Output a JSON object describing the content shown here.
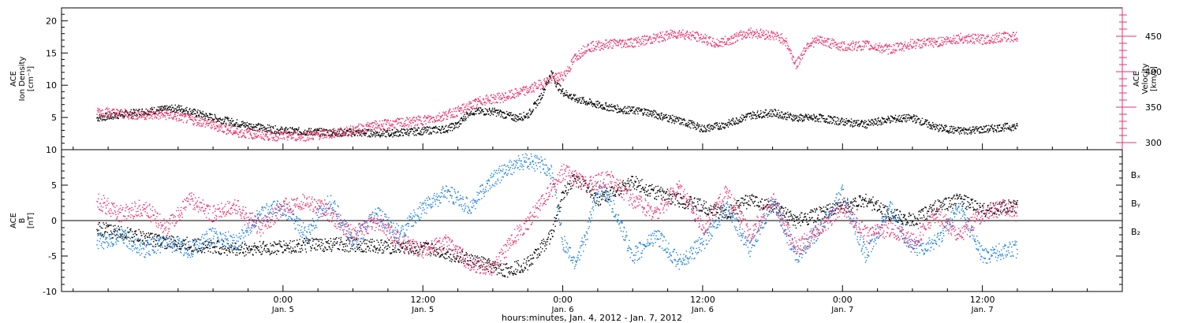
{
  "colors": {
    "black": "#000000",
    "pink": "#e8336b",
    "blue": "#1a7fe0"
  },
  "chart_data": [
    {
      "type": "scatter",
      "panel": "top",
      "ylabel_left_lines": [
        "ACE",
        "Ion Density",
        "[cm⁻³]"
      ],
      "ylabel_right_lines": [
        "ACE",
        "Velocity",
        "[km/s]"
      ],
      "ylim_left": [
        0,
        22
      ],
      "ylim_right": [
        290,
        490
      ],
      "yticks_left": [
        5,
        10,
        15,
        20
      ],
      "yticks_right": [
        300,
        350,
        400,
        450
      ],
      "series": [
        {
          "axis": "left",
          "color": "black",
          "x": [
            -16,
            -12,
            -9,
            -6,
            -3,
            0,
            3,
            6,
            9,
            12,
            14,
            15,
            16,
            18,
            20,
            21,
            22,
            23,
            23.5,
            24,
            25,
            27,
            29,
            31,
            33,
            35,
            36,
            38,
            40,
            42,
            44,
            46,
            48,
            50,
            52,
            54,
            56,
            58,
            60,
            62,
            63
          ],
          "y": [
            5,
            6,
            6.5,
            5,
            3.8,
            3,
            2.8,
            2.7,
            2.6,
            3,
            3.3,
            4,
            6,
            6,
            5,
            5.5,
            8,
            12,
            10,
            9,
            8,
            7,
            6.3,
            6,
            5,
            4,
            3.3,
            4,
            5.4,
            5.8,
            5,
            5,
            4.4,
            4,
            4.8,
            5,
            3.5,
            3,
            3.2,
            3.6,
            3.6
          ]
        },
        {
          "axis": "right",
          "color": "pink",
          "x": [
            -16,
            -13,
            -10,
            -7,
            -4,
            -1,
            2,
            5,
            8,
            11,
            13,
            15,
            17,
            19,
            21,
            23,
            24,
            24.5,
            25,
            26,
            28,
            30,
            32,
            33,
            34,
            36,
            37,
            38,
            40,
            42,
            43,
            44,
            45,
            46,
            48,
            50,
            52,
            54,
            56,
            58,
            60,
            62,
            63
          ],
          "y": [
            345,
            340,
            340,
            330,
            315,
            310,
            310,
            315,
            325,
            330,
            335,
            345,
            360,
            365,
            375,
            390,
            395,
            405,
            420,
            435,
            440,
            442,
            448,
            452,
            455,
            448,
            440,
            444,
            456,
            452,
            446,
            410,
            440,
            445,
            436,
            438,
            432,
            440,
            442,
            448,
            446,
            450,
            450
          ]
        }
      ]
    },
    {
      "type": "scatter",
      "panel": "bottom",
      "ylabel_lines": [
        "ACE",
        "B",
        "[nT]"
      ],
      "ylim": [
        -10,
        10
      ],
      "yticks": [
        -10,
        -5,
        0,
        5,
        10
      ],
      "legend": [
        "Bₓ",
        "Bᵧ",
        "B₂"
      ],
      "legend_colors": [
        "black",
        "blue",
        "pink"
      ],
      "series": [
        {
          "color": "black",
          "x": [
            -16,
            -13,
            -10,
            -7,
            -4,
            -1,
            2,
            5,
            8,
            11,
            13,
            15,
            17,
            19,
            20,
            21,
            22,
            23,
            24,
            25,
            26,
            27,
            28,
            30,
            32,
            34,
            36,
            38,
            40,
            42,
            44,
            46,
            48,
            50,
            52,
            54,
            56,
            58,
            60,
            62,
            63
          ],
          "y": [
            -1,
            -2,
            -3,
            -3.5,
            -4,
            -3.8,
            -3.4,
            -3.3,
            -3.5,
            -3.8,
            -4,
            -5,
            -6,
            -7,
            -6.5,
            -6,
            -4,
            -2,
            4,
            6,
            5,
            3,
            4,
            5.5,
            4,
            3,
            2,
            1,
            3,
            2,
            0,
            1,
            2,
            3,
            1,
            0,
            2,
            3,
            1.5,
            2,
            2
          ]
        },
        {
          "color": "blue",
          "x": [
            -16,
            -14,
            -12,
            -10,
            -8,
            -6,
            -4,
            -2,
            0,
            2,
            4,
            6,
            8,
            10,
            12,
            14,
            16,
            18,
            20,
            21,
            22,
            23,
            24,
            25,
            26,
            27,
            28,
            30,
            32,
            34,
            36,
            38,
            40,
            42,
            44,
            46,
            48,
            50,
            52,
            54,
            56,
            58,
            60,
            62,
            63
          ],
          "y": [
            -3,
            -2,
            -4,
            -3,
            -4,
            -2,
            -3,
            1,
            2,
            -2,
            3,
            -3,
            1,
            -2,
            2,
            4,
            2,
            6,
            8,
            8.5,
            8,
            7,
            -3,
            -6,
            -2,
            5,
            3,
            -5,
            -2,
            -6,
            -3,
            2,
            -4,
            3,
            -5,
            -1,
            4,
            -5,
            2,
            -4,
            -3,
            2,
            -5,
            -4,
            -4
          ]
        },
        {
          "color": "pink",
          "x": [
            -16,
            -14,
            -12,
            -10,
            -8,
            -6,
            -4,
            -2,
            0,
            2,
            4,
            6,
            8,
            10,
            12,
            14,
            16,
            18,
            20,
            22,
            24,
            26,
            28,
            30,
            32,
            34,
            36,
            38,
            40,
            42,
            44,
            46,
            48,
            50,
            52,
            54,
            56,
            58,
            60,
            62,
            63
          ],
          "y": [
            3,
            1,
            2,
            -1,
            3,
            1,
            2,
            -1,
            2,
            3,
            1,
            -2,
            0,
            -3,
            -4,
            -3,
            -6,
            -6.5,
            -2,
            2,
            7,
            5,
            6,
            3,
            1,
            5,
            -1,
            4,
            -2,
            3,
            -4,
            -1,
            2,
            -2,
            -1,
            -3,
            1,
            -2,
            1,
            2,
            1
          ]
        }
      ]
    },
    {
      "type": "axis",
      "xlabel": "hours:minutes, Jan.  4, 2012 - Jan.  7, 2012",
      "xlim": [
        -19,
        72
      ],
      "xticks": [
        {
          "x": 0,
          "time": "0:00",
          "day": "Jan. 5"
        },
        {
          "x": 12,
          "time": "12:00",
          "day": "Jan. 5"
        },
        {
          "x": 24,
          "time": "0:00",
          "day": "Jan. 6"
        },
        {
          "x": 36,
          "time": "12:00",
          "day": "Jan. 6"
        },
        {
          "x": 48,
          "time": "0:00",
          "day": "Jan. 7"
        },
        {
          "x": 60,
          "time": "12:00",
          "day": "Jan. 7"
        }
      ]
    }
  ]
}
